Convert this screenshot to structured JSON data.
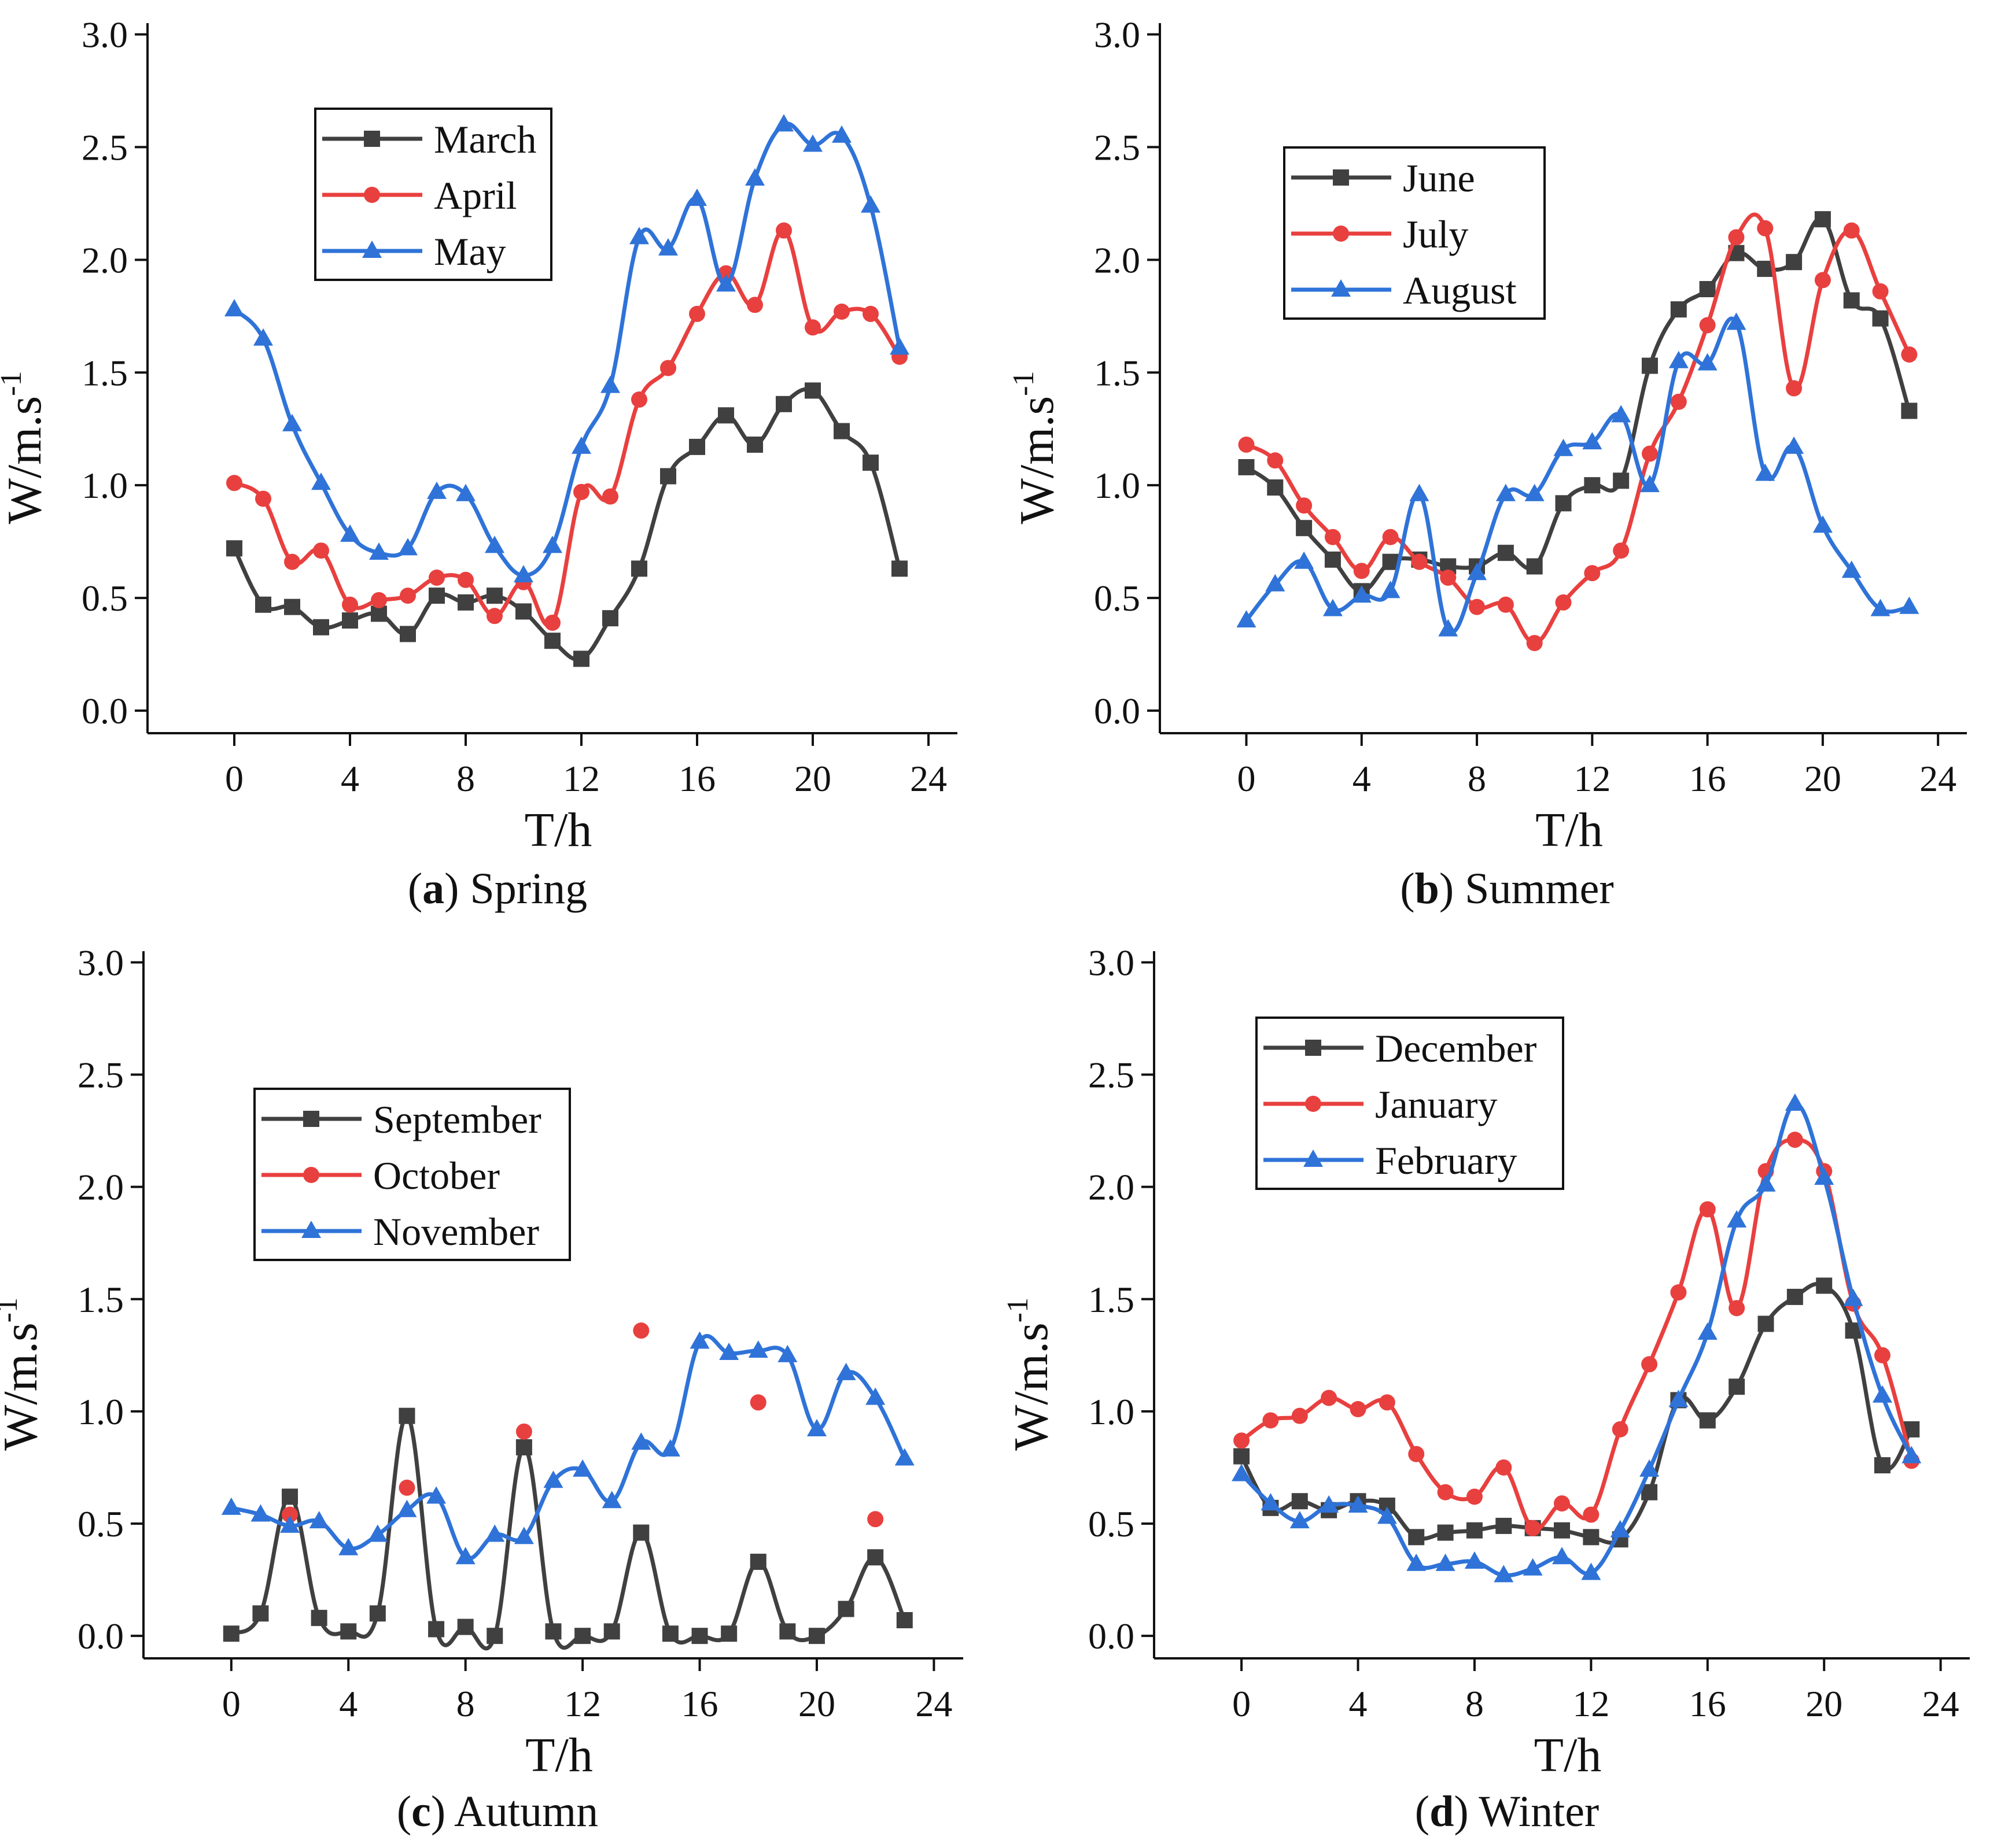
{
  "colors": {
    "march": "#404040",
    "april": "#e8403f",
    "may": "#2f73d8"
  },
  "chart_data": [
    {
      "id": "spring",
      "type": "line",
      "caption_letter": "a",
      "caption_text": " Spring",
      "xlabel": "T/h",
      "ylabel_main": "W/m.s",
      "ylabel_sup": "-1",
      "xlim": [
        -3,
        25
      ],
      "ylim": [
        -0.1,
        3.05
      ],
      "xticks": [
        0,
        4,
        8,
        12,
        16,
        20,
        24
      ],
      "xtick_labels": [
        "0",
        "4",
        "8",
        "12",
        "16",
        "20",
        "24"
      ],
      "yticks": [
        0.0,
        0.5,
        1.0,
        1.5,
        2.0,
        2.5,
        3.0
      ],
      "ytick_labels": [
        "0.0",
        "0.5",
        "1.0",
        "1.5",
        "2.0",
        "2.5",
        "3.0"
      ],
      "legend_position": "top-left",
      "series": [
        {
          "name": "March",
          "color": "#404040",
          "marker": "square",
          "x": [
            0,
            1,
            2,
            3,
            4,
            5,
            6,
            7,
            8,
            9,
            10,
            11,
            12,
            13,
            14,
            15,
            16,
            17,
            18,
            19,
            20,
            21,
            22,
            23
          ],
          "values": [
            0.72,
            0.47,
            0.46,
            0.37,
            0.4,
            0.43,
            0.34,
            0.51,
            0.48,
            0.51,
            0.44,
            0.31,
            0.23,
            0.41,
            0.63,
            1.04,
            1.17,
            1.31,
            1.18,
            1.36,
            1.42,
            1.24,
            1.1,
            0.63
          ]
        },
        {
          "name": "April",
          "color": "#e8403f",
          "marker": "circle",
          "x": [
            0,
            1,
            2,
            3,
            4,
            5,
            6,
            7,
            8,
            9,
            10,
            11,
            12,
            13,
            14,
            15,
            16,
            17,
            18,
            19,
            20,
            21,
            22,
            23
          ],
          "values": [
            1.01,
            0.94,
            0.66,
            0.71,
            0.47,
            0.49,
            0.51,
            0.59,
            0.58,
            0.42,
            0.57,
            0.39,
            0.97,
            0.95,
            1.38,
            1.52,
            1.76,
            1.94,
            1.8,
            2.13,
            1.7,
            1.77,
            1.76,
            1.57
          ]
        },
        {
          "name": "May",
          "color": "#2f73d8",
          "marker": "triangle",
          "x": [
            0,
            1,
            2,
            3,
            4,
            5,
            6,
            7,
            8,
            9,
            10,
            11,
            12,
            13,
            14,
            15,
            16,
            17,
            18,
            19,
            20,
            21,
            22,
            23
          ],
          "values": [
            1.78,
            1.65,
            1.27,
            1.01,
            0.78,
            0.7,
            0.72,
            0.97,
            0.96,
            0.73,
            0.6,
            0.73,
            1.17,
            1.44,
            2.1,
            2.05,
            2.27,
            1.89,
            2.36,
            2.6,
            2.51,
            2.55,
            2.24,
            1.61
          ]
        }
      ]
    },
    {
      "id": "summer",
      "type": "line",
      "caption_letter": "b",
      "caption_text": " Summer",
      "xlabel": "T/h",
      "ylabel_main": "W/m.s",
      "ylabel_sup": "-1",
      "xlim": [
        -3,
        25
      ],
      "ylim": [
        -0.1,
        3.05
      ],
      "xticks": [
        0,
        4,
        8,
        12,
        16,
        20,
        24
      ],
      "xtick_labels": [
        "0",
        "4",
        "8",
        "12",
        "16",
        "20",
        "24"
      ],
      "yticks": [
        0.0,
        0.5,
        1.0,
        1.5,
        2.0,
        2.5,
        3.0
      ],
      "ytick_labels": [
        "0.0",
        "0.5",
        "1.0",
        "1.5",
        "2.0",
        "2.5",
        "3.0"
      ],
      "legend_position": "top-left",
      "series": [
        {
          "name": "June",
          "color": "#404040",
          "marker": "square",
          "x": [
            0,
            1,
            2,
            3,
            4,
            5,
            6,
            7,
            8,
            9,
            10,
            11,
            12,
            13,
            14,
            15,
            16,
            17,
            18,
            19,
            20,
            21,
            22,
            23
          ],
          "values": [
            1.08,
            0.99,
            0.81,
            0.67,
            0.53,
            0.66,
            0.67,
            0.64,
            0.64,
            0.7,
            0.64,
            0.92,
            1.0,
            1.02,
            1.53,
            1.78,
            1.87,
            2.03,
            1.96,
            1.99,
            2.18,
            1.82,
            1.74,
            1.33
          ]
        },
        {
          "name": "July",
          "color": "#e8403f",
          "marker": "circle",
          "x": [
            0,
            1,
            2,
            3,
            4,
            5,
            6,
            7,
            8,
            9,
            10,
            11,
            12,
            13,
            14,
            15,
            16,
            17,
            18,
            19,
            20,
            21,
            22,
            23
          ],
          "values": [
            1.18,
            1.11,
            0.91,
            0.77,
            0.62,
            0.77,
            0.66,
            0.59,
            0.46,
            0.47,
            0.3,
            0.48,
            0.61,
            0.71,
            1.14,
            1.37,
            1.71,
            2.1,
            2.14,
            1.43,
            1.91,
            2.13,
            1.86,
            1.58
          ]
        },
        {
          "name": "August",
          "color": "#2f73d8",
          "marker": "triangle",
          "x": [
            0,
            1,
            2,
            3,
            4,
            5,
            6,
            7,
            8,
            9,
            10,
            11,
            12,
            13,
            14,
            15,
            16,
            17,
            18,
            19,
            20,
            21,
            22,
            23
          ],
          "values": [
            0.4,
            0.56,
            0.66,
            0.45,
            0.51,
            0.53,
            0.96,
            0.36,
            0.61,
            0.96,
            0.96,
            1.16,
            1.19,
            1.31,
            1.0,
            1.55,
            1.54,
            1.72,
            1.05,
            1.17,
            0.82,
            0.62,
            0.45,
            0.46
          ]
        }
      ]
    },
    {
      "id": "autumn",
      "type": "line",
      "caption_letter": "c",
      "caption_text": " Autumn",
      "xlabel": "T/h",
      "ylabel_main": "W/m.s",
      "ylabel_sup": "-1",
      "xlim": [
        -3,
        25
      ],
      "ylim": [
        -0.1,
        3.05
      ],
      "xticks": [
        0,
        4,
        8,
        12,
        16,
        20,
        24
      ],
      "xtick_labels": [
        "0",
        "4",
        "8",
        "12",
        "16",
        "20",
        "24"
      ],
      "yticks": [
        0.0,
        0.5,
        1.0,
        1.5,
        2.0,
        2.5,
        3.0
      ],
      "ytick_labels": [
        "0.0",
        "0.5",
        "1.0",
        "1.5",
        "2.0",
        "2.5",
        "3.0"
      ],
      "legend_position": "middle-left",
      "series": [
        {
          "name": "September",
          "color": "#404040",
          "marker": "square",
          "x": [
            0,
            1,
            2,
            3,
            4,
            5,
            6,
            7,
            8,
            9,
            10,
            11,
            12,
            13,
            14,
            15,
            16,
            17,
            18,
            19,
            20,
            21,
            22,
            23
          ],
          "values": [
            0.01,
            0.1,
            0.62,
            0.08,
            0.02,
            0.1,
            0.98,
            0.03,
            0.04,
            0.0,
            0.84,
            0.02,
            0.0,
            0.02,
            0.46,
            0.01,
            0.0,
            0.01,
            0.33,
            0.02,
            0.0,
            0.12,
            0.35,
            0.07
          ]
        },
        {
          "name": "October",
          "color": "#e8403f",
          "marker": "circle",
          "x": [
            2,
            6,
            10,
            14,
            18,
            22
          ],
          "values": [
            0.54,
            0.66,
            0.91,
            1.36,
            1.04,
            0.52
          ]
        },
        {
          "name": "November",
          "color": "#2f73d8",
          "marker": "triangle",
          "x": [
            0,
            1,
            2,
            3,
            4,
            5,
            6,
            7,
            8,
            9,
            10,
            11,
            12,
            13,
            14,
            15,
            16,
            17,
            18,
            19,
            20,
            21,
            22,
            23
          ],
          "values": [
            0.57,
            0.54,
            0.49,
            0.51,
            0.39,
            0.45,
            0.56,
            0.62,
            0.35,
            0.45,
            0.44,
            0.69,
            0.74,
            0.6,
            0.86,
            0.83,
            1.31,
            1.26,
            1.27,
            1.25,
            0.92,
            1.17,
            1.06,
            0.79
          ]
        }
      ]
    },
    {
      "id": "winter",
      "type": "line",
      "caption_letter": "d",
      "caption_text": " Winter",
      "xlabel": "T/h",
      "ylabel_main": "W/m.s",
      "ylabel_sup": "-1",
      "xlim": [
        -3,
        25
      ],
      "ylim": [
        -0.1,
        3.05
      ],
      "xticks": [
        0,
        4,
        8,
        12,
        16,
        20,
        24
      ],
      "xtick_labels": [
        "0",
        "4",
        "8",
        "12",
        "16",
        "20",
        "24"
      ],
      "yticks": [
        0.0,
        0.5,
        1.0,
        1.5,
        2.0,
        2.5,
        3.0
      ],
      "ytick_labels": [
        "0.0",
        "0.5",
        "1.0",
        "1.5",
        "2.0",
        "2.5",
        "3.0"
      ],
      "legend_position": "top-left",
      "series": [
        {
          "name": "December",
          "color": "#404040",
          "marker": "square",
          "x": [
            0,
            1,
            2,
            3,
            4,
            5,
            6,
            7,
            8,
            9,
            10,
            11,
            12,
            13,
            14,
            15,
            16,
            17,
            18,
            19,
            20,
            21,
            22,
            23
          ],
          "values": [
            0.8,
            0.57,
            0.6,
            0.56,
            0.6,
            0.58,
            0.44,
            0.46,
            0.47,
            0.49,
            0.48,
            0.47,
            0.44,
            0.43,
            0.64,
            1.05,
            0.96,
            1.11,
            1.39,
            1.51,
            1.56,
            1.36,
            0.76,
            0.92
          ]
        },
        {
          "name": "January",
          "color": "#e8403f",
          "marker": "circle",
          "x": [
            0,
            1,
            2,
            3,
            4,
            5,
            6,
            7,
            8,
            9,
            10,
            11,
            12,
            13,
            14,
            15,
            16,
            17,
            18,
            19,
            20,
            21,
            22,
            23
          ],
          "values": [
            0.87,
            0.96,
            0.98,
            1.06,
            1.01,
            1.04,
            0.81,
            0.64,
            0.62,
            0.75,
            0.48,
            0.59,
            0.54,
            0.92,
            1.21,
            1.53,
            1.9,
            1.46,
            2.07,
            2.21,
            2.07,
            1.48,
            1.25,
            0.78
          ]
        },
        {
          "name": "February",
          "color": "#2f73d8",
          "marker": "triangle",
          "x": [
            0,
            1,
            2,
            3,
            4,
            5,
            6,
            7,
            8,
            9,
            10,
            11,
            12,
            13,
            14,
            15,
            16,
            17,
            18,
            19,
            20,
            21,
            22,
            23
          ],
          "values": [
            0.72,
            0.59,
            0.51,
            0.58,
            0.58,
            0.53,
            0.32,
            0.32,
            0.33,
            0.27,
            0.3,
            0.35,
            0.28,
            0.47,
            0.74,
            1.05,
            1.35,
            1.85,
            2.01,
            2.37,
            2.04,
            1.5,
            1.07,
            0.8
          ]
        }
      ]
    }
  ]
}
